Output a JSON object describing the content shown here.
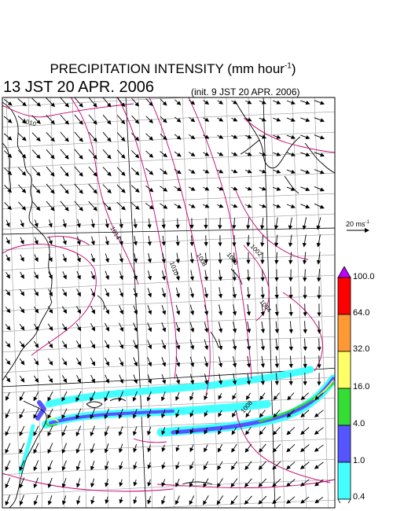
{
  "title": {
    "main": "PRECIPITATION INTENSITY (mm hour",
    "unit_exp": "-1",
    "close": ")"
  },
  "valid_time": "13 JST 20 APR. 2006",
  "init_time": "(init. 9 JST 20 APR. 2006)",
  "wind_scale": {
    "label": "20 ms",
    "exp": "-1"
  },
  "isobar_labels": [
    "1010",
    "1014",
    "1010",
    "1008",
    "1006",
    "1004",
    "1002",
    "1008"
  ],
  "colorbar": {
    "labels": [
      "100.0",
      "64.0",
      "32.0",
      "16.0",
      "4.0",
      "1.0",
      "0.4"
    ],
    "colors": [
      "#c000ff",
      "#ff0000",
      "#ff9933",
      "#ffff66",
      "#33dd33",
      "#5555ff",
      "#44ffff",
      "#ffffff"
    ]
  },
  "colors": {
    "isobar": "#c8006e",
    "coast": "#000000",
    "grid": "#9a9a9a",
    "rain_light": "#44ffff",
    "rain_mod": "#5555ff",
    "rain_heavy": "#33dd33",
    "rain_vheavy": "#ffff66"
  }
}
